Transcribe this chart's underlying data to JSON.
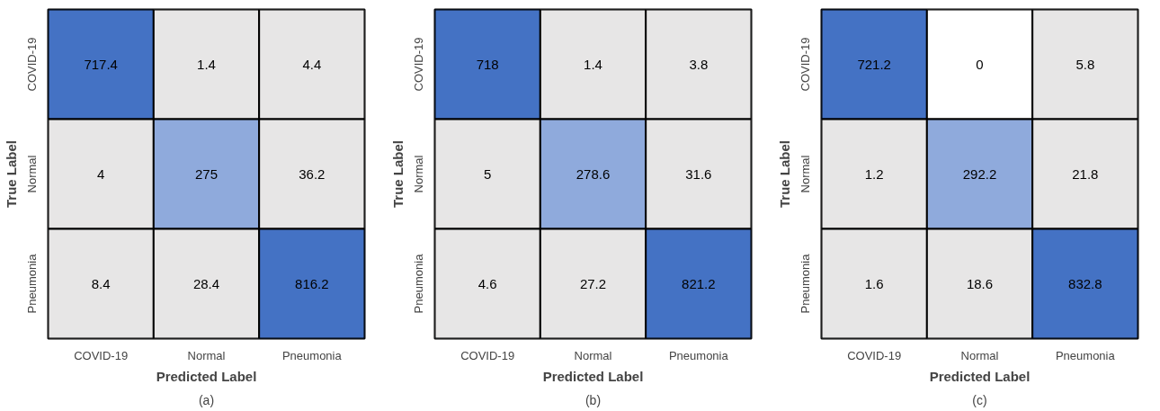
{
  "chart_data": [
    {
      "type": "heatmap",
      "data_labels": true,
      "title": "(a)",
      "xlabel": "Predicted Label",
      "ylabel": "True Label",
      "categories": [
        "COVID-19",
        "Normal",
        "Pneumonia"
      ],
      "y_categories": [
        "COVID-19",
        "Normal",
        "Pneumonia"
      ],
      "cells": [
        [
          717.4,
          1.4,
          4.4
        ],
        [
          4,
          275,
          36.2
        ],
        [
          8.4,
          28.4,
          816.2
        ]
      ],
      "colors": [
        [
          "#4472c4",
          "#e7e6e6",
          "#e7e6e6"
        ],
        [
          "#e7e6e6",
          "#8faadc",
          "#e7e6e6"
        ],
        [
          "#e7e6e6",
          "#e7e6e6",
          "#4472c4"
        ]
      ]
    },
    {
      "type": "heatmap",
      "data_labels": true,
      "title": "(b)",
      "xlabel": "Predicted Label",
      "ylabel": "True Label",
      "categories": [
        "COVID-19",
        "Normal",
        "Pneumonia"
      ],
      "y_categories": [
        "COVID-19",
        "Normal",
        "Pneumonia"
      ],
      "cells": [
        [
          718,
          1.4,
          3.8
        ],
        [
          5,
          278.6,
          31.6
        ],
        [
          4.6,
          27.2,
          821.2
        ]
      ],
      "colors": [
        [
          "#4472c4",
          "#e7e6e6",
          "#e7e6e6"
        ],
        [
          "#e7e6e6",
          "#8faadc",
          "#e7e6e6"
        ],
        [
          "#e7e6e6",
          "#e7e6e6",
          "#4472c4"
        ]
      ]
    },
    {
      "type": "heatmap",
      "data_labels": true,
      "title": "(c)",
      "xlabel": "Predicted Label",
      "ylabel": "True Label",
      "categories": [
        "COVID-19",
        "Normal",
        "Pneumonia"
      ],
      "y_categories": [
        "COVID-19",
        "Normal",
        "Pneumonia"
      ],
      "cells": [
        [
          721.2,
          0,
          5.8
        ],
        [
          1.2,
          292.2,
          21.8
        ],
        [
          1.6,
          18.6,
          832.8
        ]
      ],
      "colors": [
        [
          "#4472c4",
          "#ffffff",
          "#e7e6e6"
        ],
        [
          "#e7e6e6",
          "#8faadc",
          "#e7e6e6"
        ],
        [
          "#e7e6e6",
          "#e7e6e6",
          "#4472c4"
        ]
      ]
    }
  ]
}
